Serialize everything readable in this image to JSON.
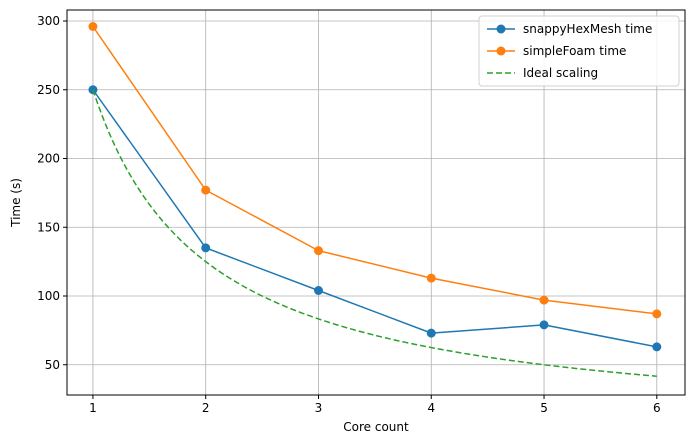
{
  "chart_data": {
    "type": "line",
    "title": "",
    "xlabel": "Core count",
    "ylabel": "Time (s)",
    "x": [
      1,
      2,
      3,
      4,
      5,
      6
    ],
    "xlim": [
      0.77,
      6.25
    ],
    "ylim": [
      28,
      308
    ],
    "xticks": [
      1,
      2,
      3,
      4,
      5,
      6
    ],
    "yticks": [
      50,
      100,
      150,
      200,
      250,
      300
    ],
    "grid": true,
    "legend_position": "top-right",
    "series": [
      {
        "name": "snappyHexMesh time",
        "color": "#1f77b4",
        "style": "solid",
        "marker": "circle",
        "values": [
          250,
          135,
          104,
          73,
          79,
          63
        ]
      },
      {
        "name": "simpleFoam time",
        "color": "#ff7f0e",
        "style": "solid",
        "marker": "circle",
        "values": [
          296,
          177,
          133,
          113,
          97,
          87
        ]
      },
      {
        "name": "Ideal scaling",
        "color": "#2ca02c",
        "style": "dashed",
        "marker": "none",
        "formula": "250 / x",
        "values": [
          250,
          125,
          83.3,
          62.5,
          50,
          41.7
        ]
      }
    ]
  }
}
